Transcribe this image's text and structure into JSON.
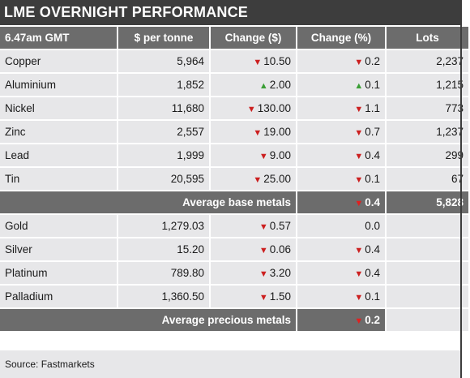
{
  "title": "LME OVERNIGHT PERFORMANCE",
  "colors": {
    "header_bg": "#3d3d3d",
    "column_header_bg": "#6c6c6c",
    "row_bg": "#e7e7e9",
    "down": "#cc1f1f",
    "up": "#3a9e35"
  },
  "chart_data": {
    "type": "table",
    "title": "LME OVERNIGHT PERFORMANCE",
    "columns": [
      "6.47am GMT",
      "$ per tonne",
      "Change ($)",
      "Change (%)",
      "Lots"
    ],
    "base_metals": [
      {
        "name": "Copper",
        "price": "5,964",
        "change_usd": "10.50",
        "usd_dir": "down",
        "change_pct": "0.2",
        "pct_dir": "down",
        "lots": "2,237"
      },
      {
        "name": "Aluminium",
        "price": "1,852",
        "change_usd": "2.00",
        "usd_dir": "up",
        "change_pct": "0.1",
        "pct_dir": "up",
        "lots": "1,215"
      },
      {
        "name": "Nickel",
        "price": "11,680",
        "change_usd": "130.00",
        "usd_dir": "down",
        "change_pct": "1.1",
        "pct_dir": "down",
        "lots": "773"
      },
      {
        "name": "Zinc",
        "price": "2,557",
        "change_usd": "19.00",
        "usd_dir": "down",
        "change_pct": "0.7",
        "pct_dir": "down",
        "lots": "1,237"
      },
      {
        "name": "Lead",
        "price": "1,999",
        "change_usd": "9.00",
        "usd_dir": "down",
        "change_pct": "0.4",
        "pct_dir": "down",
        "lots": "299"
      },
      {
        "name": "Tin",
        "price": "20,595",
        "change_usd": "25.00",
        "usd_dir": "down",
        "change_pct": "0.1",
        "pct_dir": "down",
        "lots": "67"
      }
    ],
    "base_average": {
      "label": "Average base metals",
      "change_pct": "0.4",
      "pct_dir": "down",
      "lots": "5,828"
    },
    "precious_metals": [
      {
        "name": "Gold",
        "price": "1,279.03",
        "change_usd": "0.57",
        "usd_dir": "down",
        "change_pct": "0.0",
        "pct_dir": "none"
      },
      {
        "name": "Silver",
        "price": "15.20",
        "change_usd": "0.06",
        "usd_dir": "down",
        "change_pct": "0.4",
        "pct_dir": "down"
      },
      {
        "name": "Platinum",
        "price": "789.80",
        "change_usd": "3.20",
        "usd_dir": "down",
        "change_pct": "0.4",
        "pct_dir": "down"
      },
      {
        "name": "Palladium",
        "price": "1,360.50",
        "change_usd": "1.50",
        "usd_dir": "down",
        "change_pct": "0.1",
        "pct_dir": "down"
      }
    ],
    "precious_average": {
      "label": "Average precious metals",
      "change_pct": "0.2",
      "pct_dir": "down"
    }
  },
  "source": "Source: Fastmarkets"
}
